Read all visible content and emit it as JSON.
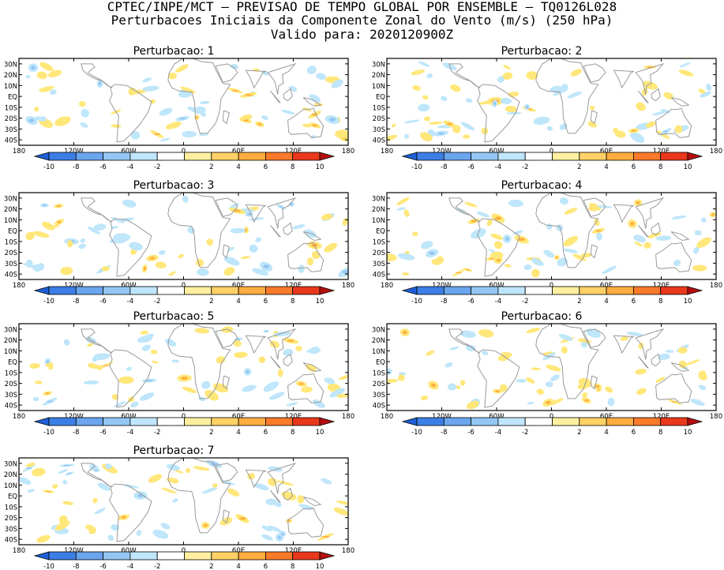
{
  "header": {
    "line1": "CPTEC/INPE/MCT – PREVISAO DE TEMPO GLOBAL POR ENSEMBLE – TQ0126L028",
    "line2": "Perturbacoes Iniciais da Componente Zonal do Vento (m/s) (250 hPa)",
    "line3": "Valido para: 2020120900Z"
  },
  "panels": [
    {
      "title": "Perturbacao: 1"
    },
    {
      "title": "Perturbacao: 2"
    },
    {
      "title": "Perturbacao: 3"
    },
    {
      "title": "Perturbacao: 4"
    },
    {
      "title": "Perturbacao: 5"
    },
    {
      "title": "Perturbacao: 6"
    },
    {
      "title": "Perturbacao: 7"
    }
  ],
  "map_axes": {
    "lat_labels": [
      "30N",
      "20N",
      "10N",
      "EQ",
      "10S",
      "20S",
      "30S",
      "40S"
    ],
    "lon_labels": [
      "180",
      "120W",
      "60W",
      "0",
      "60E",
      "120E",
      "180"
    ]
  },
  "colorbar": {
    "labels": [
      "-10",
      "-8",
      "-6",
      "-4",
      "-2",
      "2",
      "4",
      "6",
      "8",
      "10"
    ],
    "colors": [
      "#1f5fd6",
      "#3b7fe6",
      "#6aa5ee",
      "#94c6f4",
      "#bfe6fa",
      "#ffffff",
      "#fff0a0",
      "#ffd166",
      "#ffad40",
      "#f97a2a",
      "#e9381c",
      "#b50e0e"
    ]
  },
  "colors": {
    "negative_fill": "#bfe6fa",
    "negative_strong": "#94c6f4",
    "positive_fill": "#ffe77a",
    "positive_strong": "#ffb040",
    "coast": "#9a9a9a"
  }
}
